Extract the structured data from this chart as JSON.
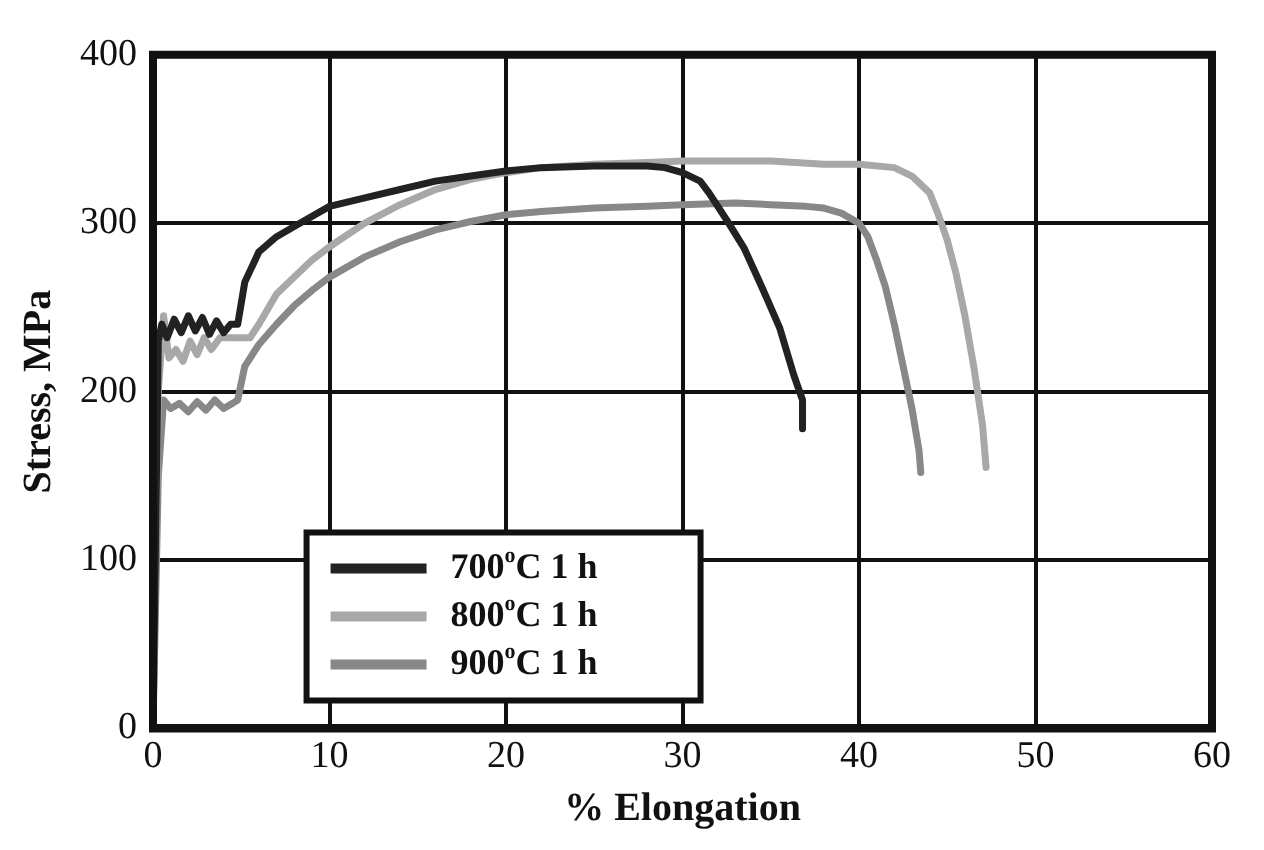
{
  "chart_data": {
    "type": "line",
    "xlabel": "% Elongation",
    "ylabel": "Stress, MPa",
    "xlim": [
      0,
      60
    ],
    "ylim": [
      0,
      400
    ],
    "xticks": [
      0,
      10,
      20,
      30,
      40,
      50,
      60
    ],
    "yticks": [
      0,
      100,
      200,
      300,
      400
    ],
    "grid": true,
    "legend": "bottom left",
    "marker": "none",
    "line_style": "solid",
    "series": [
      {
        "name": "700$^{o}$C 1 h",
        "color": "#222222",
        "x": [
          0,
          0.3,
          0.5,
          0.8,
          1.2,
          1.6,
          2,
          2.4,
          2.8,
          3.2,
          3.6,
          4,
          4.4,
          4.8,
          5.2,
          6,
          7,
          8,
          10,
          12,
          14,
          16,
          18,
          20,
          22,
          25,
          28,
          29,
          30,
          31,
          31.5,
          32.5,
          33.5,
          34.5,
          35.5,
          36.3,
          36.8,
          36.8
        ],
        "values": [
          0,
          230,
          240,
          232,
          243,
          235,
          245,
          236,
          244,
          234,
          242,
          235,
          240,
          240,
          265,
          283,
          292,
          298,
          310,
          315,
          320,
          325,
          328,
          331,
          333,
          334,
          334,
          333,
          330,
          325,
          318,
          302,
          285,
          262,
          238,
          210,
          195,
          178
        ]
      },
      {
        "name": "800$^{o}$C 1 h",
        "color": "#a8a8a8",
        "x": [
          0,
          0.3,
          0.6,
          0.9,
          1.3,
          1.7,
          2.1,
          2.5,
          2.9,
          3.3,
          3.8,
          4.5,
          5.5,
          6,
          7,
          8,
          9,
          10,
          12,
          14,
          16,
          18,
          20,
          22,
          25,
          28,
          30,
          33,
          35,
          38,
          40,
          42,
          43,
          44,
          44.5,
          45,
          45.5,
          46,
          46.5,
          47,
          47.2
        ],
        "values": [
          0,
          200,
          245,
          220,
          225,
          218,
          230,
          222,
          232,
          225,
          232,
          232,
          232,
          240,
          258,
          268,
          278,
          286,
          300,
          311,
          320,
          326,
          330,
          333,
          335,
          336,
          337,
          337,
          337,
          335,
          335,
          333,
          328,
          318,
          305,
          290,
          270,
          245,
          215,
          180,
          155
        ]
      },
      {
        "name": "900$^{o}$C 1 h",
        "color": "#888888",
        "x": [
          0,
          0.3,
          0.6,
          1,
          1.5,
          2,
          2.5,
          3,
          3.5,
          4,
          4.5,
          4.8,
          5.2,
          6,
          7,
          8,
          9,
          10,
          12,
          14,
          16,
          18,
          20,
          22,
          25,
          28,
          30,
          33,
          35,
          37,
          38,
          39,
          40,
          40.5,
          41,
          41.5,
          42,
          42.5,
          43,
          43.4,
          43.5
        ],
        "values": [
          0,
          150,
          195,
          190,
          193,
          188,
          194,
          189,
          195,
          190,
          193,
          195,
          215,
          228,
          240,
          251,
          260,
          268,
          280,
          289,
          296,
          301,
          305,
          307,
          309,
          310,
          311,
          312,
          311,
          310,
          309,
          306,
          300,
          292,
          278,
          262,
          240,
          215,
          190,
          165,
          152
        ]
      }
    ]
  }
}
